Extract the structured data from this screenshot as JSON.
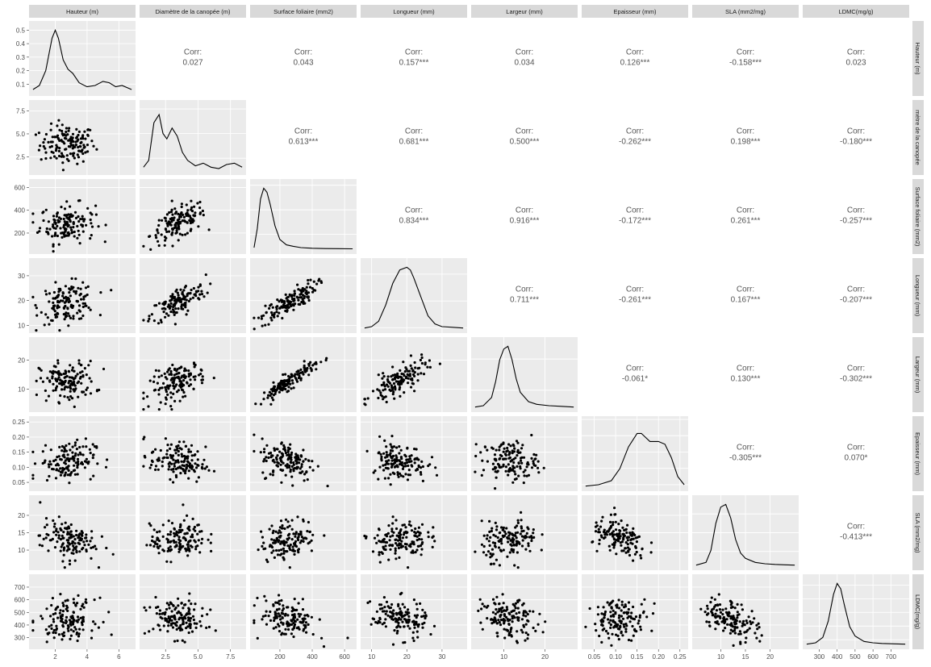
{
  "chart_data": {
    "type": "scatter-matrix",
    "variables": [
      {
        "label": "Hauteur (m)",
        "row_label": "Hauteur (m)",
        "range": [
          0.6,
          6.8
        ],
        "ticks": [
          2,
          4,
          6
        ]
      },
      {
        "label": "Diamètre de la canopée (m)",
        "row_label": "mètre de la canopée",
        "range": [
          0.8,
          8.4
        ],
        "ticks": [
          2.5,
          5.0,
          7.5
        ]
      },
      {
        "label": "Surface foliaire (mm2)",
        "row_label": "Surface foliaire (mm2)",
        "range": [
          40,
          650
        ],
        "ticks": [
          200,
          400,
          600
        ]
      },
      {
        "label": "Longueur (mm)",
        "row_label": "Longueur (mm)",
        "range": [
          8,
          36
        ],
        "ticks": [
          10,
          20,
          30
        ]
      },
      {
        "label": "Largeur (mm)",
        "row_label": "Largeur (mm)",
        "range": [
          3,
          27
        ],
        "ticks": [
          10,
          20
        ]
      },
      {
        "label": "Epaisseur (mm)",
        "row_label": "Epaisseur (mm)",
        "range": [
          0.03,
          0.26
        ],
        "ticks": [
          0.05,
          0.1,
          0.15,
          0.2,
          0.25
        ]
      },
      {
        "label": "SLA (mm2/mg)",
        "row_label": "SLA (mm2/mg)",
        "range": [
          5,
          25
        ],
        "ticks": [
          10,
          15,
          20
        ]
      },
      {
        "label": "LDMC(mg/g)",
        "row_label": "LDMC(mg/g)",
        "range": [
          230,
          780
        ],
        "ticks": [
          300,
          400,
          500,
          600,
          700
        ]
      }
    ],
    "y_ticks": [
      [
        0.1,
        0.2,
        0.3,
        0.4,
        0.5
      ],
      [
        2.5,
        5.0,
        7.5
      ],
      [
        200,
        400,
        600
      ],
      [
        10,
        20,
        30
      ],
      [
        10,
        20
      ],
      [
        0.05,
        0.1,
        0.15,
        0.2,
        0.25
      ],
      [
        10,
        15,
        20
      ],
      [
        300,
        400,
        500,
        600,
        700
      ]
    ],
    "y_tick_labels": [
      [
        "0.1",
        "0.2",
        "0.3",
        "0.4",
        "0.5"
      ],
      [
        "2.5",
        "5.0",
        "7.5"
      ],
      [
        "200",
        "400",
        "600"
      ],
      [
        "10",
        "20",
        "30"
      ],
      [
        "10",
        "20"
      ],
      [
        "0.05",
        "0.10",
        "0.15",
        "0.20",
        "0.25"
      ],
      [
        "10",
        "15",
        "20"
      ],
      [
        "300",
        "400",
        "500",
        "600",
        "700"
      ]
    ],
    "x_tick_labels": [
      [
        "2",
        "4",
        "6"
      ],
      [
        "2.5",
        "5.0",
        "7.5"
      ],
      [
        "200",
        "400",
        "600"
      ],
      [
        "10",
        "20",
        "30"
      ],
      [
        "10",
        "20"
      ],
      [
        "0.05",
        "0.10",
        "0.15",
        "0.20",
        "0.25"
      ],
      [
        "10",
        "15",
        "20"
      ],
      [
        "300",
        "400",
        "500",
        "600",
        "700"
      ]
    ],
    "density_y_range": [
      0.05,
      0.52
    ],
    "corr_label": "Corr:",
    "correlations": [
      {
        "row": 0,
        "col": 1,
        "value": "0.027"
      },
      {
        "row": 0,
        "col": 2,
        "value": "0.043"
      },
      {
        "row": 0,
        "col": 3,
        "value": "0.157***"
      },
      {
        "row": 0,
        "col": 4,
        "value": "0.034"
      },
      {
        "row": 0,
        "col": 5,
        "value": "0.126***"
      },
      {
        "row": 0,
        "col": 6,
        "value": "-0.158***"
      },
      {
        "row": 0,
        "col": 7,
        "value": "0.023"
      },
      {
        "row": 1,
        "col": 2,
        "value": "0.613***"
      },
      {
        "row": 1,
        "col": 3,
        "value": "0.681***"
      },
      {
        "row": 1,
        "col": 4,
        "value": "0.500***"
      },
      {
        "row": 1,
        "col": 5,
        "value": "-0.262***"
      },
      {
        "row": 1,
        "col": 6,
        "value": "0.198***"
      },
      {
        "row": 1,
        "col": 7,
        "value": "-0.180***"
      },
      {
        "row": 2,
        "col": 3,
        "value": "0.834***"
      },
      {
        "row": 2,
        "col": 4,
        "value": "0.916***"
      },
      {
        "row": 2,
        "col": 5,
        "value": "-0.172***"
      },
      {
        "row": 2,
        "col": 6,
        "value": "0.261***"
      },
      {
        "row": 2,
        "col": 7,
        "value": "-0.257***"
      },
      {
        "row": 3,
        "col": 4,
        "value": "0.711***"
      },
      {
        "row": 3,
        "col": 5,
        "value": "-0.261***"
      },
      {
        "row": 3,
        "col": 6,
        "value": "0.167***"
      },
      {
        "row": 3,
        "col": 7,
        "value": "-0.207***"
      },
      {
        "row": 4,
        "col": 5,
        "value": "-0.061*"
      },
      {
        "row": 4,
        "col": 6,
        "value": "0.130***"
      },
      {
        "row": 4,
        "col": 7,
        "value": "-0.302***"
      },
      {
        "row": 5,
        "col": 6,
        "value": "-0.305***"
      },
      {
        "row": 5,
        "col": 7,
        "value": "0.070*"
      },
      {
        "row": 6,
        "col": 7,
        "value": "-0.413***"
      }
    ],
    "densities": [
      {
        "var": 0,
        "x": [
          0.6,
          1.0,
          1.4,
          1.8,
          2.0,
          2.2,
          2.5,
          2.8,
          3.1,
          3.5,
          4.0,
          4.5,
          5.0,
          5.4,
          5.8,
          6.2,
          6.8
        ],
        "y": [
          0.06,
          0.09,
          0.2,
          0.44,
          0.5,
          0.44,
          0.28,
          0.21,
          0.18,
          0.11,
          0.08,
          0.09,
          0.12,
          0.11,
          0.08,
          0.09,
          0.06
        ]
      },
      {
        "var": 1,
        "x": [
          0.8,
          1.2,
          1.6,
          2.0,
          2.3,
          2.6,
          3.0,
          3.4,
          3.8,
          4.2,
          4.8,
          5.4,
          6.0,
          6.6,
          7.2,
          7.8,
          8.4
        ],
        "y": [
          0.07,
          0.12,
          0.4,
          0.46,
          0.32,
          0.28,
          0.36,
          0.3,
          0.18,
          0.12,
          0.08,
          0.1,
          0.07,
          0.06,
          0.09,
          0.1,
          0.07
        ]
      },
      {
        "var": 2,
        "x": [
          40,
          60,
          80,
          100,
          120,
          140,
          170,
          200,
          240,
          280,
          330,
          400,
          480,
          560,
          650
        ],
        "y": [
          0.06,
          0.2,
          0.42,
          0.5,
          0.47,
          0.38,
          0.22,
          0.12,
          0.08,
          0.07,
          0.06,
          0.055,
          0.053,
          0.052,
          0.051
        ]
      },
      {
        "var": 3,
        "x": [
          8,
          10,
          12,
          14,
          16,
          18,
          20,
          21,
          22,
          24,
          26,
          28,
          30,
          33,
          36
        ],
        "y": [
          0.05,
          0.06,
          0.1,
          0.22,
          0.38,
          0.48,
          0.5,
          0.48,
          0.42,
          0.28,
          0.14,
          0.08,
          0.06,
          0.055,
          0.05
        ]
      },
      {
        "var": 4,
        "x": [
          3,
          5,
          7,
          8,
          9,
          10,
          11,
          12,
          13,
          14,
          16,
          18,
          21,
          24,
          27
        ],
        "y": [
          0.05,
          0.06,
          0.12,
          0.24,
          0.4,
          0.48,
          0.5,
          0.4,
          0.26,
          0.16,
          0.09,
          0.07,
          0.06,
          0.055,
          0.05
        ]
      },
      {
        "var": 5,
        "x": [
          0.03,
          0.06,
          0.09,
          0.11,
          0.13,
          0.15,
          0.16,
          0.18,
          0.2,
          0.215,
          0.23,
          0.245,
          0.26
        ],
        "y": [
          0.05,
          0.06,
          0.09,
          0.18,
          0.34,
          0.44,
          0.44,
          0.38,
          0.38,
          0.36,
          0.26,
          0.12,
          0.06
        ]
      },
      {
        "var": 6,
        "x": [
          5,
          7,
          8,
          9,
          10,
          11,
          12,
          13,
          14,
          15,
          17,
          19,
          21,
          23,
          25
        ],
        "y": [
          0.05,
          0.07,
          0.16,
          0.36,
          0.48,
          0.5,
          0.4,
          0.24,
          0.14,
          0.1,
          0.07,
          0.06,
          0.055,
          0.052,
          0.05
        ]
      },
      {
        "var": 7,
        "x": [
          230,
          280,
          320,
          350,
          380,
          400,
          420,
          440,
          470,
          500,
          550,
          600,
          650,
          720,
          780
        ],
        "y": [
          0.05,
          0.06,
          0.1,
          0.22,
          0.42,
          0.5,
          0.46,
          0.34,
          0.18,
          0.11,
          0.07,
          0.06,
          0.055,
          0.052,
          0.05
        ]
      }
    ]
  }
}
